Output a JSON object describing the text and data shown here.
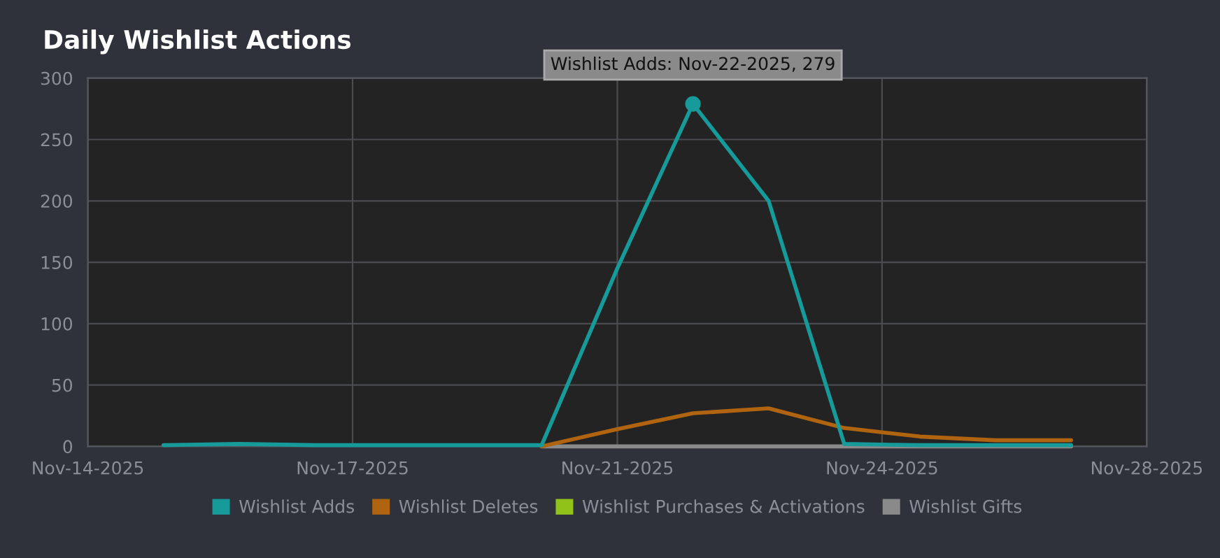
{
  "chart_data": {
    "type": "line",
    "title": "Daily Wishlist Actions",
    "x": [
      "2025-11-15",
      "2025-11-16",
      "2025-11-17",
      "2025-11-18",
      "2025-11-19",
      "2025-11-20",
      "2025-11-21",
      "2025-11-22",
      "2025-11-23",
      "2025-11-24",
      "2025-11-25",
      "2025-11-26",
      "2025-11-27"
    ],
    "series": [
      {
        "name": "Wishlist Adds",
        "color": "#179a9a",
        "values": [
          1,
          2,
          1,
          1,
          1,
          1,
          145,
          279,
          200,
          2,
          1,
          1,
          1
        ]
      },
      {
        "name": "Wishlist Deletes",
        "color": "#b0640f",
        "values": [
          null,
          null,
          null,
          null,
          null,
          0,
          14,
          27,
          31,
          15,
          8,
          5,
          5
        ]
      },
      {
        "name": "Wishlist Purchases & Activations",
        "color": "#90c21a",
        "values": [
          null,
          null,
          null,
          null,
          null,
          null,
          null,
          null,
          null,
          null,
          null,
          null,
          null
        ]
      },
      {
        "name": "Wishlist Gifts",
        "color": "#8a8a8a",
        "values": [
          null,
          null,
          null,
          null,
          null,
          0,
          0,
          0,
          0,
          0,
          0,
          0,
          0
        ]
      }
    ],
    "xlim": [
      "2025-11-14",
      "2025-11-28"
    ],
    "xticks": [
      {
        "value": "2025-11-14",
        "label": "Nov-14-2025"
      },
      {
        "value": "2025-11-17T12:00",
        "label": "Nov-17-2025"
      },
      {
        "value": "2025-11-21",
        "label": "Nov-21-2025"
      },
      {
        "value": "2025-11-24T12:00",
        "label": "Nov-24-2025"
      },
      {
        "value": "2025-11-28",
        "label": "Nov-28-2025"
      }
    ],
    "ylim": [
      0,
      300
    ],
    "yticks": [
      0,
      50,
      100,
      150,
      200,
      250,
      300
    ],
    "grid": true,
    "legend": "bottom",
    "marker": "none",
    "line_style": "solid",
    "annotations": [
      {
        "text": "Wishlist Adds: Nov-22-2025, 279",
        "x": "2025-11-22",
        "y": 279
      }
    ]
  }
}
